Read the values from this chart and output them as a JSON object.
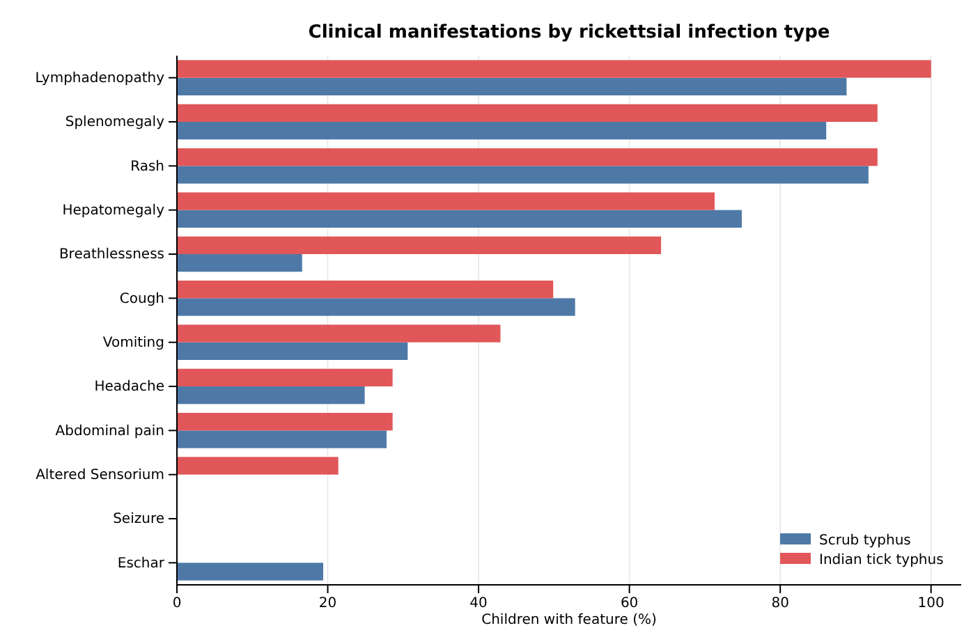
{
  "chart_data": {
    "type": "bar",
    "orientation": "horizontal",
    "title": "Clinical manifestations by rickettsial infection type",
    "xlabel": "Children with feature (%)",
    "categories": [
      "Lymphadenopathy",
      "Splenomegaly",
      "Rash",
      "Hepatomegaly",
      "Breathlessness",
      "Cough",
      "Vomiting",
      "Headache",
      "Abdominal pain",
      "Altered Sensorium",
      "Seizure",
      "Eschar"
    ],
    "series": [
      {
        "name": "Scrub typhus",
        "color": "#4e79a7",
        "values": [
          88.8,
          86.1,
          91.7,
          74.9,
          16.6,
          52.8,
          30.6,
          24.9,
          27.8,
          0,
          0,
          19.4
        ]
      },
      {
        "name": "Indian tick typhus",
        "color": "#e15759",
        "values": [
          100,
          92.9,
          92.9,
          71.3,
          64.2,
          49.9,
          42.9,
          28.6,
          28.6,
          21.4,
          0,
          0
        ]
      }
    ],
    "xlim": [
      0,
      104
    ],
    "xticks": [
      0,
      20,
      40,
      60,
      80,
      100
    ],
    "grid": "x",
    "legend": "bottom right"
  }
}
